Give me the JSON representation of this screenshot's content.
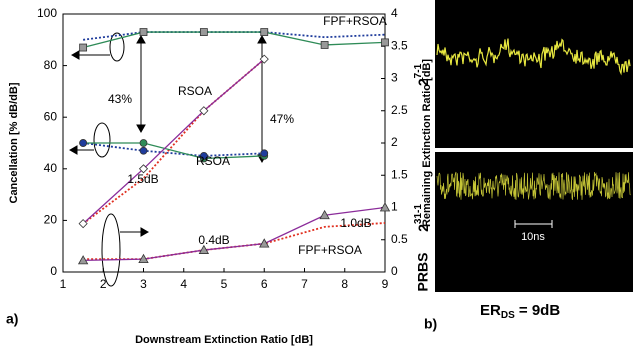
{
  "chart_data": {
    "type": "line",
    "xlabel": "Downstream Extinction Ratio [dB]",
    "ylabel": "Cancellation [% dB/dB]",
    "y2label": "Remaining Extinction Ratio [dB]",
    "xlim": [
      1,
      9
    ],
    "xticks": [
      1,
      2,
      3,
      4,
      5,
      6,
      7,
      8,
      9
    ],
    "ylim": [
      0,
      100
    ],
    "yticks": [
      0,
      20,
      40,
      60,
      80,
      100
    ],
    "y2lim": [
      0,
      4
    ],
    "y2ticks": [
      0,
      0.5,
      1,
      1.5,
      2,
      2.5,
      3,
      3.5,
      4
    ],
    "series": [
      {
        "color": "#2e8b57",
        "style": "solid",
        "marker": "square",
        "marker_color": "#999999",
        "x": [
          1.5,
          3,
          4.5,
          6,
          7.5,
          9
        ],
        "values": [
          87,
          93,
          93,
          93,
          88,
          89
        ]
      },
      {
        "color": "#1f3c9c",
        "style": "dotted",
        "x": [
          1.5,
          3,
          4.5,
          6,
          7.5,
          9
        ],
        "values": [
          90,
          93,
          93,
          93,
          91,
          92
        ]
      },
      {
        "color": "#2e8b57",
        "style": "solid",
        "marker": "circle",
        "marker_color": "#2e8b57",
        "x": [
          1.5,
          3,
          4.5,
          6
        ],
        "values": [
          50,
          50,
          44,
          45
        ]
      },
      {
        "color": "#1f3c9c",
        "style": "dotted",
        "marker": "circle",
        "marker_color": "#1f3c9c",
        "x": [
          1.5,
          3,
          4.5,
          6
        ],
        "values": [
          50,
          47,
          45,
          46
        ]
      },
      {
        "color": "#8b2c9a",
        "style": "solid",
        "marker": "diamond",
        "marker_color": "#ffffff",
        "axis": "y2",
        "x": [
          1.5,
          3,
          4.5,
          6
        ],
        "values": [
          0.75,
          1.6,
          2.5,
          3.3
        ]
      },
      {
        "color": "#e03020",
        "style": "dotted",
        "axis": "y2",
        "x": [
          1.5,
          3,
          4.5,
          6
        ],
        "values": [
          0.75,
          1.45,
          2.5,
          3.3
        ]
      },
      {
        "color": "#8b2c9a",
        "style": "solid",
        "marker": "triangle",
        "marker_color": "#999999",
        "axis": "y2",
        "x": [
          1.5,
          3,
          4.5,
          6,
          7.5,
          9
        ],
        "values": [
          0.18,
          0.2,
          0.34,
          0.44,
          0.88,
          1.0
        ]
      },
      {
        "color": "#e03020",
        "style": "dotted",
        "axis": "y2",
        "x": [
          1.5,
          3,
          4.5,
          6,
          7.5,
          9
        ],
        "values": [
          0.2,
          0.2,
          0.34,
          0.44,
          0.7,
          0.76
        ]
      }
    ],
    "annotations": [
      "FPF+RSOA",
      "43%",
      "RSOA",
      "47%",
      "RSOA",
      "1.5dB",
      "1.0dB",
      "0.4dB",
      "FPF+RSOA"
    ],
    "panel_a": "a)"
  },
  "eye_panel": {
    "label": "b)",
    "top_base": "2",
    "top_exp": "7-1",
    "bottom_base": "2",
    "bottom_exp": "31-1",
    "prbs": "PRBS",
    "scale": "10ns",
    "er": "ER",
    "er_sub": "DS",
    "er_rest": " = 9dB"
  }
}
